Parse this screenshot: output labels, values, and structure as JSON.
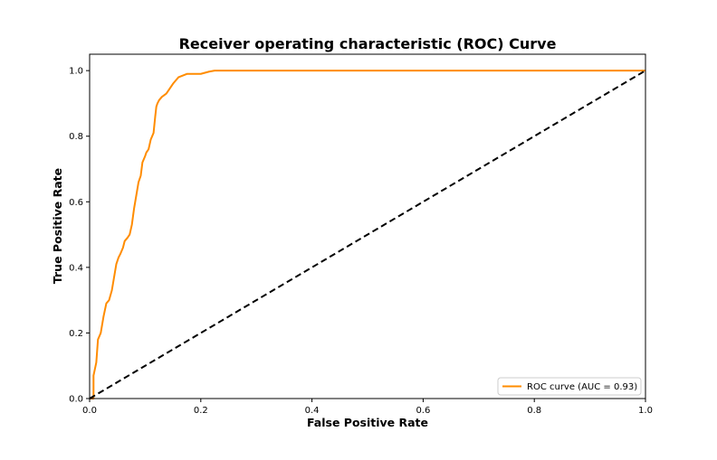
{
  "chart_data": {
    "type": "line",
    "title": "Receiver operating characteristic (ROC) Curve",
    "xlabel": "False Positive Rate",
    "ylabel": "True Positive Rate",
    "xlim": [
      0.0,
      1.0
    ],
    "ylim": [
      0.0,
      1.05
    ],
    "x_ticks": [
      "0.0",
      "0.2",
      "0.4",
      "0.6",
      "0.8",
      "1.0"
    ],
    "y_ticks": [
      "0.0",
      "0.2",
      "0.4",
      "0.6",
      "0.8",
      "1.0"
    ],
    "x_tick_values": [
      0.0,
      0.2,
      0.4,
      0.6,
      0.8,
      1.0
    ],
    "y_tick_values": [
      0.0,
      0.2,
      0.4,
      0.6,
      0.8,
      1.0
    ],
    "grid": false,
    "legend_position": "lower right",
    "series": [
      {
        "name": "ROC curve (AUC = 0.93)",
        "color": "#ff8c00",
        "style": "solid",
        "x": [
          0.0,
          0.007,
          0.007,
          0.012,
          0.015,
          0.02,
          0.025,
          0.03,
          0.035,
          0.04,
          0.042,
          0.045,
          0.048,
          0.052,
          0.055,
          0.06,
          0.063,
          0.068,
          0.072,
          0.076,
          0.08,
          0.082,
          0.085,
          0.088,
          0.092,
          0.095,
          0.1,
          0.102,
          0.106,
          0.11,
          0.115,
          0.118,
          0.12,
          0.122,
          0.125,
          0.13,
          0.138,
          0.142,
          0.15,
          0.16,
          0.175,
          0.2,
          0.215,
          0.225,
          0.3,
          0.5,
          0.8,
          1.0
        ],
        "y": [
          0.0,
          0.0,
          0.07,
          0.11,
          0.18,
          0.2,
          0.25,
          0.29,
          0.3,
          0.33,
          0.35,
          0.38,
          0.41,
          0.43,
          0.44,
          0.46,
          0.48,
          0.49,
          0.5,
          0.53,
          0.58,
          0.6,
          0.63,
          0.66,
          0.68,
          0.72,
          0.74,
          0.75,
          0.76,
          0.79,
          0.81,
          0.86,
          0.89,
          0.9,
          0.91,
          0.92,
          0.93,
          0.94,
          0.96,
          0.98,
          0.99,
          0.99,
          0.997,
          1.0,
          1.0,
          1.0,
          1.0,
          1.0
        ]
      },
      {
        "color": "#000000",
        "style": "dashed",
        "x": [
          0.0,
          1.0
        ],
        "y": [
          0.0,
          1.0
        ]
      }
    ]
  }
}
